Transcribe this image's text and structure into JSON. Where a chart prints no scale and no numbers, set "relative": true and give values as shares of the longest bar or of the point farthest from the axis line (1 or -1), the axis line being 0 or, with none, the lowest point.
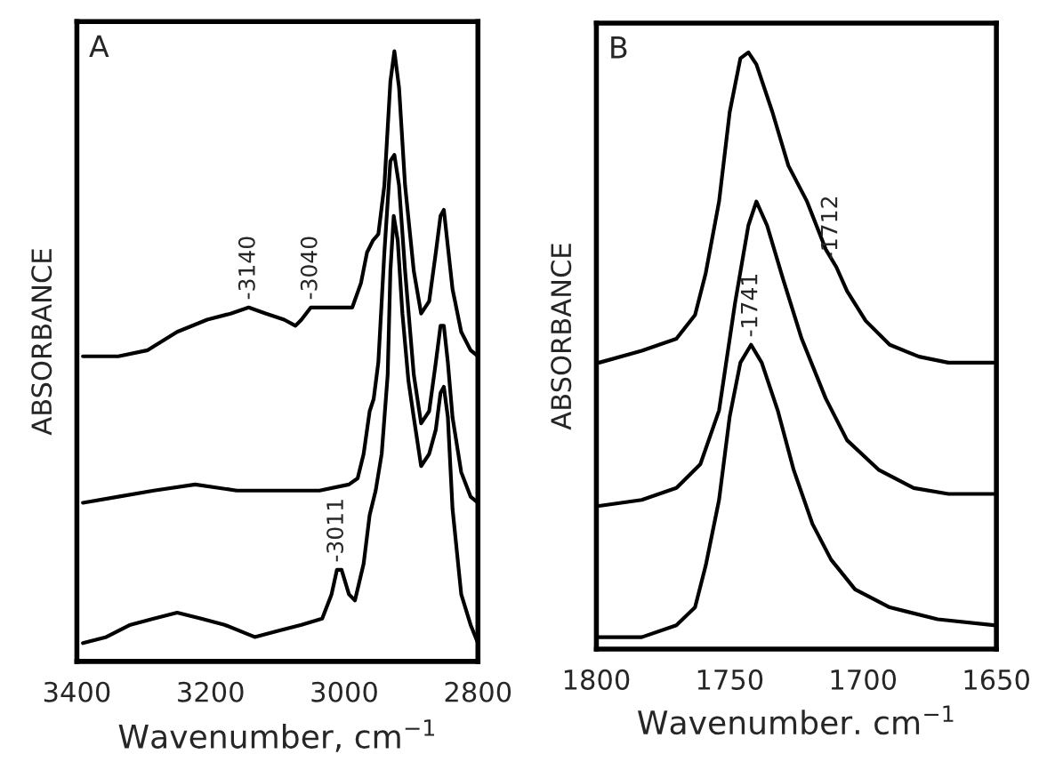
{
  "chart_data": [
    {
      "type": "line",
      "title": "A",
      "xlabel": "Wavenumber, cm$^{−1}$",
      "ylabel": "ABSORBANCE",
      "relative": true,
      "xlim": [
        3400,
        2800
      ],
      "xticks": [
        3400,
        3200,
        3000,
        2800
      ],
      "annotations": [
        {
          "text": "-3140",
          "x": 3143,
          "y": 0.58
        },
        {
          "text": "-3040",
          "x": 3050,
          "y": 0.58
        },
        {
          "text": "-3011",
          "x": 3011,
          "y": 0.15
        }
      ],
      "series": [
        {
          "color": "#000000",
          "x": [
            3391,
            3338,
            3294,
            3250,
            3205,
            3170,
            3143,
            3117,
            3090,
            3073,
            3064,
            3050,
            3002,
            2988,
            2975,
            2966,
            2957,
            2949,
            2940,
            2931,
            2925,
            2918,
            2909,
            2896,
            2885,
            2873,
            2863,
            2856,
            2851,
            2845,
            2838,
            2825,
            2811,
            2800
          ],
          "values": [
            0.5,
            0.5,
            0.51,
            0.54,
            0.56,
            0.57,
            0.58,
            0.57,
            0.56,
            0.55,
            0.56,
            0.58,
            0.58,
            0.58,
            0.62,
            0.67,
            0.69,
            0.7,
            0.78,
            0.95,
            1.0,
            0.94,
            0.78,
            0.64,
            0.57,
            0.59,
            0.67,
            0.73,
            0.74,
            0.68,
            0.61,
            0.54,
            0.51,
            0.5
          ]
        },
        {
          "color": "#000000",
          "x": [
            3391,
            3338,
            3285,
            3223,
            3161,
            3099,
            3037,
            2993,
            2980,
            2971,
            2962,
            2956,
            2949,
            2940,
            2931,
            2925,
            2918,
            2909,
            2896,
            2885,
            2873,
            2863,
            2856,
            2851,
            2845,
            2838,
            2825,
            2811,
            2800
          ],
          "values": [
            0.26,
            0.27,
            0.28,
            0.29,
            0.28,
            0.28,
            0.28,
            0.29,
            0.3,
            0.34,
            0.41,
            0.43,
            0.49,
            0.67,
            0.82,
            0.83,
            0.78,
            0.64,
            0.47,
            0.39,
            0.41,
            0.49,
            0.55,
            0.55,
            0.49,
            0.4,
            0.31,
            0.27,
            0.26
          ]
        },
        {
          "color": "#000000",
          "x": [
            3391,
            3356,
            3320,
            3285,
            3250,
            3214,
            3179,
            3134,
            3099,
            3064,
            3033,
            3019,
            3011,
            3004,
            2993,
            2984,
            2971,
            2962,
            2953,
            2944,
            2935,
            2931,
            2926,
            2920,
            2913,
            2904,
            2896,
            2885,
            2873,
            2863,
            2856,
            2851,
            2845,
            2838,
            2825,
            2811,
            2800
          ],
          "values": [
            0.03,
            0.04,
            0.06,
            0.07,
            0.08,
            0.07,
            0.06,
            0.04,
            0.05,
            0.06,
            0.07,
            0.11,
            0.15,
            0.15,
            0.11,
            0.1,
            0.16,
            0.24,
            0.28,
            0.34,
            0.47,
            0.64,
            0.73,
            0.69,
            0.57,
            0.46,
            0.4,
            0.32,
            0.34,
            0.38,
            0.44,
            0.45,
            0.4,
            0.25,
            0.11,
            0.06,
            0.03
          ]
        }
      ]
    },
    {
      "type": "line",
      "title": "B",
      "xlabel": "Wavenumber. cm$^{−1}$",
      "ylabel": "ABSORBANCE",
      "relative": true,
      "xlim": [
        1800,
        1650
      ],
      "xticks": [
        1800,
        1750,
        1700,
        1650
      ],
      "annotations": [
        {
          "text": "-1712",
          "x": 1712,
          "y": 0.64
        },
        {
          "text": "-1741",
          "x": 1742,
          "y": 0.51
        }
      ],
      "series": [
        {
          "color": "#000000",
          "x": [
            1799,
            1783,
            1770,
            1763,
            1759,
            1754,
            1750,
            1746,
            1743,
            1740,
            1734,
            1728,
            1721,
            1714,
            1710,
            1706,
            1699,
            1690,
            1679,
            1668,
            1651
          ],
          "values": [
            0.48,
            0.5,
            0.52,
            0.56,
            0.63,
            0.75,
            0.9,
            0.99,
            1.0,
            0.98,
            0.9,
            0.81,
            0.75,
            0.67,
            0.64,
            0.6,
            0.55,
            0.51,
            0.49,
            0.48,
            0.48
          ]
        },
        {
          "color": "#000000",
          "x": [
            1799,
            1783,
            1770,
            1761,
            1754,
            1748,
            1743,
            1740,
            1736,
            1730,
            1723,
            1714,
            1706,
            1694,
            1681,
            1668,
            1651
          ],
          "values": [
            0.24,
            0.25,
            0.27,
            0.31,
            0.4,
            0.58,
            0.71,
            0.75,
            0.71,
            0.62,
            0.52,
            0.42,
            0.35,
            0.3,
            0.27,
            0.26,
            0.26
          ]
        },
        {
          "color": "#000000",
          "x": [
            1799,
            1783,
            1770,
            1763,
            1759,
            1754,
            1750,
            1746,
            1742,
            1738,
            1732,
            1726,
            1719,
            1712,
            1703,
            1690,
            1672,
            1651
          ],
          "values": [
            0.02,
            0.02,
            0.04,
            0.07,
            0.14,
            0.25,
            0.39,
            0.48,
            0.51,
            0.48,
            0.4,
            0.3,
            0.21,
            0.15,
            0.1,
            0.07,
            0.05,
            0.04
          ]
        }
      ]
    }
  ]
}
